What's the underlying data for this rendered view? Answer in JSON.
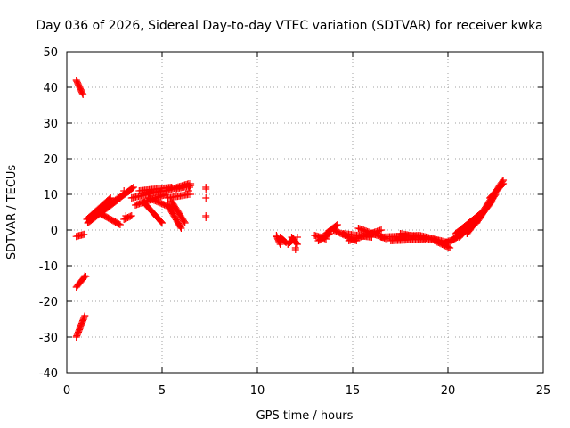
{
  "chart_data": {
    "type": "scatter",
    "title": "Day 036 of 2026, Sidereal Day-to-day VTEC variation (SDTVAR) for receiver kwka",
    "xlabel": "GPS time / hours",
    "ylabel": "SDTVAR / TECUs",
    "xlim": [
      0,
      25
    ],
    "ylim": [
      -40,
      50
    ],
    "xticks": [
      0,
      5,
      10,
      15,
      20,
      25
    ],
    "yticks": [
      -40,
      -30,
      -20,
      -10,
      0,
      10,
      20,
      30,
      40,
      50
    ],
    "grid": true,
    "marker": "+",
    "color": "#ff0000",
    "series": [
      {
        "name": "SDTVAR",
        "segments": [
          {
            "from": [
              0.5,
              42
            ],
            "to": [
              0.85,
              38
            ]
          },
          {
            "from": [
              0.5,
              -16
            ],
            "to": [
              0.95,
              -13
            ]
          },
          {
            "from": [
              0.5,
              -30
            ],
            "to": [
              0.95,
              -24
            ]
          },
          {
            "from": [
              0.5,
              -1.8
            ],
            "to": [
              0.9,
              -1.2
            ]
          },
          {
            "from": [
              1.05,
              3
            ],
            "to": [
              2.3,
              9
            ]
          },
          {
            "from": [
              1.1,
              2
            ],
            "to": [
              2.8,
              9
            ]
          },
          {
            "from": [
              1.3,
              4
            ],
            "to": [
              3.3,
              11
            ]
          },
          {
            "from": [
              1.8,
              5
            ],
            "to": [
              3.5,
              12
            ]
          },
          {
            "from": [
              1.8,
              4.5
            ],
            "to": [
              2.8,
              1.5
            ]
          },
          {
            "from": [
              3.0,
              3
            ],
            "to": [
              3.4,
              4
            ]
          },
          {
            "from": [
              3.4,
              9
            ],
            "to": [
              5.0,
              11
            ]
          },
          {
            "from": [
              3.6,
              7
            ],
            "to": [
              5.2,
              10
            ]
          },
          {
            "from": [
              3.8,
              11
            ],
            "to": [
              5.5,
              12
            ]
          },
          {
            "from": [
              4.0,
              8
            ],
            "to": [
              5.0,
              2
            ]
          },
          {
            "from": [
              4.3,
              9
            ],
            "to": [
              5.6,
              6
            ]
          },
          {
            "from": [
              5.2,
              11
            ],
            "to": [
              6.4,
              13
            ]
          },
          {
            "from": [
              5.3,
              9
            ],
            "to": [
              6.4,
              10
            ]
          },
          {
            "from": [
              5.3,
              7
            ],
            "to": [
              6.0,
              0.5
            ]
          },
          {
            "from": [
              5.5,
              8
            ],
            "to": [
              6.2,
              2
            ]
          },
          {
            "from": [
              5.7,
              11.5
            ],
            "to": [
              6.5,
              12.5
            ]
          },
          {
            "from": [
              11.0,
              -1.5
            ],
            "to": [
              11.2,
              -4
            ]
          },
          {
            "from": [
              11.2,
              -2
            ],
            "to": [
              11.5,
              -3.5
            ]
          },
          {
            "from": [
              11.6,
              -4
            ],
            "to": [
              11.9,
              -2.5
            ]
          },
          {
            "from": [
              11.8,
              -2
            ],
            "to": [
              12.1,
              -4
            ]
          },
          {
            "from": [
              13.0,
              -1.5
            ],
            "to": [
              13.6,
              -2.5
            ]
          },
          {
            "from": [
              13.2,
              -3
            ],
            "to": [
              13.8,
              -1
            ]
          },
          {
            "from": [
              13.6,
              -1
            ],
            "to": [
              14.2,
              1.5
            ]
          },
          {
            "from": [
              14.0,
              0
            ],
            "to": [
              15.2,
              -3
            ]
          },
          {
            "from": [
              14.5,
              -1
            ],
            "to": [
              16.0,
              -2
            ]
          },
          {
            "from": [
              14.8,
              -3
            ],
            "to": [
              16.5,
              0
            ]
          },
          {
            "from": [
              15.3,
              0.5
            ],
            "to": [
              16.8,
              -2.5
            ]
          },
          {
            "from": [
              16.5,
              -2
            ],
            "to": [
              18.5,
              -1.5
            ]
          },
          {
            "from": [
              17.0,
              -3
            ],
            "to": [
              18.8,
              -2.5
            ]
          },
          {
            "from": [
              17.5,
              -1
            ],
            "to": [
              19.5,
              -3
            ]
          },
          {
            "from": [
              18.5,
              -1.5
            ],
            "to": [
              20.0,
              -3.5
            ]
          },
          {
            "from": [
              19.3,
              -3
            ],
            "to": [
              20.1,
              -5
            ]
          },
          {
            "from": [
              19.7,
              -4
            ],
            "to": [
              20.5,
              -2
            ]
          },
          {
            "from": [
              20.2,
              -3
            ],
            "to": [
              21.5,
              2
            ]
          },
          {
            "from": [
              20.4,
              -1
            ],
            "to": [
              21.8,
              5
            ]
          },
          {
            "from": [
              20.6,
              -2
            ],
            "to": [
              22.0,
              6
            ]
          },
          {
            "from": [
              21.0,
              -1
            ],
            "to": [
              22.3,
              8
            ]
          },
          {
            "from": [
              21.5,
              2
            ],
            "to": [
              22.5,
              10
            ]
          },
          {
            "from": [
              21.8,
              5
            ],
            "to": [
              22.9,
              14
            ]
          },
          {
            "from": [
              22.2,
              9
            ],
            "to": [
              22.9,
              13
            ]
          }
        ],
        "points": [
          [
            6.5,
            13
          ],
          [
            6.45,
            12
          ],
          [
            6.5,
            10
          ],
          [
            6.4,
            11
          ],
          [
            7.3,
            12
          ],
          [
            7.3,
            11.5
          ],
          [
            7.3,
            9
          ],
          [
            7.3,
            4
          ],
          [
            7.3,
            3.5
          ],
          [
            1.0,
            -13
          ],
          [
            0.95,
            -12.8
          ],
          [
            3.0,
            11
          ],
          [
            3.1,
            4
          ],
          [
            12.0,
            -5
          ],
          [
            12.0,
            -5.5
          ],
          [
            11.8,
            -3
          ],
          [
            12.1,
            -2
          ]
        ]
      }
    ]
  }
}
